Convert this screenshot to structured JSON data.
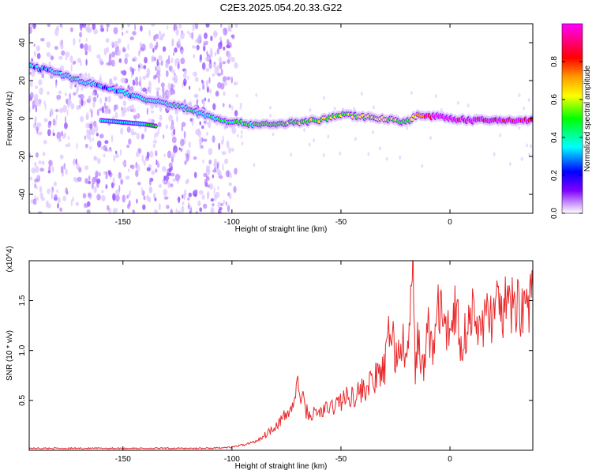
{
  "title": "C2E3.2025.054.20.33.G22",
  "chart_data": [
    {
      "type": "heatmap",
      "xlabel": "Height of straight line (km)",
      "ylabel": "Frequency (Hz)",
      "xlim": [
        -193,
        38
      ],
      "ylim": [
        -50,
        50
      ],
      "xticks": [
        -150,
        -100,
        -50,
        0
      ],
      "yticks": [
        -40,
        -20,
        0,
        20,
        40
      ],
      "grid": false,
      "colorbar": {
        "label": "Normalized spectral amplitude",
        "range": [
          0,
          1
        ],
        "ticks": [
          "0.0",
          "0.2",
          "0.4",
          "0.6",
          "0.8"
        ],
        "colors": [
          "#ffffff",
          "#cc99ff",
          "#7f00ff",
          "#0000ff",
          "#00ffff",
          "#00ff00",
          "#ffff00",
          "#ff7f00",
          "#ff0000",
          "#ff00ff"
        ]
      },
      "ridge": {
        "x": [
          -193,
          -180,
          -170,
          -160,
          -150,
          -140,
          -130,
          -120,
          -110,
          -100,
          -90,
          -80,
          -70,
          -60,
          -50,
          -40,
          -30,
          -20,
          -15,
          -10,
          -5,
          0,
          10,
          20,
          38
        ],
        "y": [
          28,
          24,
          20,
          17,
          14,
          10,
          8,
          5,
          1,
          -2,
          -3,
          -3,
          -2,
          -1,
          2,
          1,
          0,
          -2,
          2,
          1,
          1,
          0,
          -1,
          -1,
          -1
        ],
        "amplitude": [
          0.25,
          0.3,
          0.3,
          0.25,
          0.25,
          0.3,
          0.3,
          0.35,
          0.3,
          0.35,
          0.4,
          0.45,
          0.45,
          0.5,
          0.45,
          0.55,
          0.55,
          0.4,
          0.6,
          0.8,
          0.9,
          0.9,
          0.85,
          0.85,
          0.8
        ]
      },
      "secondary_ridge": {
        "x": [
          -160,
          -150,
          -140,
          -135
        ],
        "y": [
          -1,
          -2,
          -3,
          -4
        ],
        "amplitude": [
          0.25,
          0.3,
          0.35,
          0.4
        ]
      }
    },
    {
      "type": "line",
      "xlabel": "Height of straight line (km)",
      "ylabel": "SNR (10 * v/v)",
      "y_multiplier": "(x10^4)",
      "xlim": [
        -193,
        38
      ],
      "ylim": [
        0,
        1.9
      ],
      "xticks": [
        -150,
        -100,
        -50,
        0
      ],
      "yticks": [
        "0.5",
        "1.0",
        "1.5"
      ],
      "grid": false,
      "line_color": "#e8282a",
      "series": [
        {
          "x": [
            -193,
            -170,
            -150,
            -130,
            -110,
            -100,
            -90,
            -85,
            -80,
            -75,
            -72,
            -70,
            -65,
            -60,
            -55,
            -50,
            -45,
            -40,
            -35,
            -30,
            -27,
            -25,
            -22,
            -20,
            -18,
            -17,
            -16,
            -15,
            -12,
            -10,
            -8,
            -6,
            -4,
            -2,
            0,
            3,
            5,
            8,
            10,
            12,
            15,
            20,
            25,
            30,
            38
          ],
          "y": [
            0.02,
            0.02,
            0.02,
            0.02,
            0.02,
            0.03,
            0.08,
            0.15,
            0.25,
            0.35,
            0.45,
            0.65,
            0.35,
            0.38,
            0.42,
            0.5,
            0.55,
            0.6,
            0.7,
            0.8,
            1.3,
            0.9,
            1.1,
            0.85,
            1.4,
            1.9,
            0.7,
            1.15,
            0.75,
            1.3,
            0.95,
            1.35,
            1.45,
            1.1,
            1.3,
            1.45,
            1.05,
            1.25,
            1.4,
            1.2,
            1.3,
            1.38,
            1.42,
            1.45,
            1.48
          ]
        }
      ]
    }
  ]
}
